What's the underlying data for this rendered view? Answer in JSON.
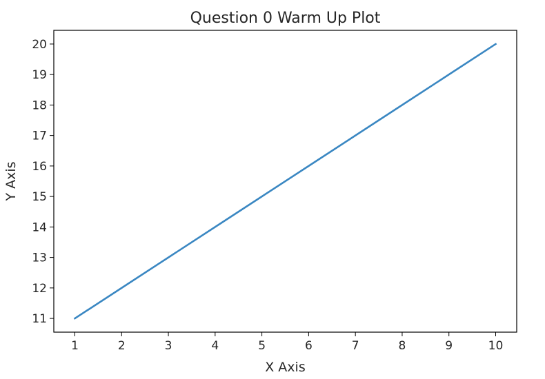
{
  "chart_data": {
    "type": "line",
    "title": "Question 0 Warm Up Plot",
    "xlabel": "X Axis",
    "ylabel": "Y Axis",
    "xlim": [
      0.55,
      10.45
    ],
    "ylim": [
      10.55,
      20.45
    ],
    "xticks": [
      1,
      2,
      3,
      4,
      5,
      6,
      7,
      8,
      9,
      10
    ],
    "yticks": [
      11,
      12,
      13,
      14,
      15,
      16,
      17,
      18,
      19,
      20
    ],
    "grid": false,
    "series": [
      {
        "color": "#3a87c2",
        "x": [
          1,
          2,
          3,
          4,
          5,
          6,
          7,
          8,
          9,
          10
        ],
        "y": [
          11,
          12,
          13,
          14,
          15,
          16,
          17,
          18,
          19,
          20
        ]
      }
    ]
  }
}
